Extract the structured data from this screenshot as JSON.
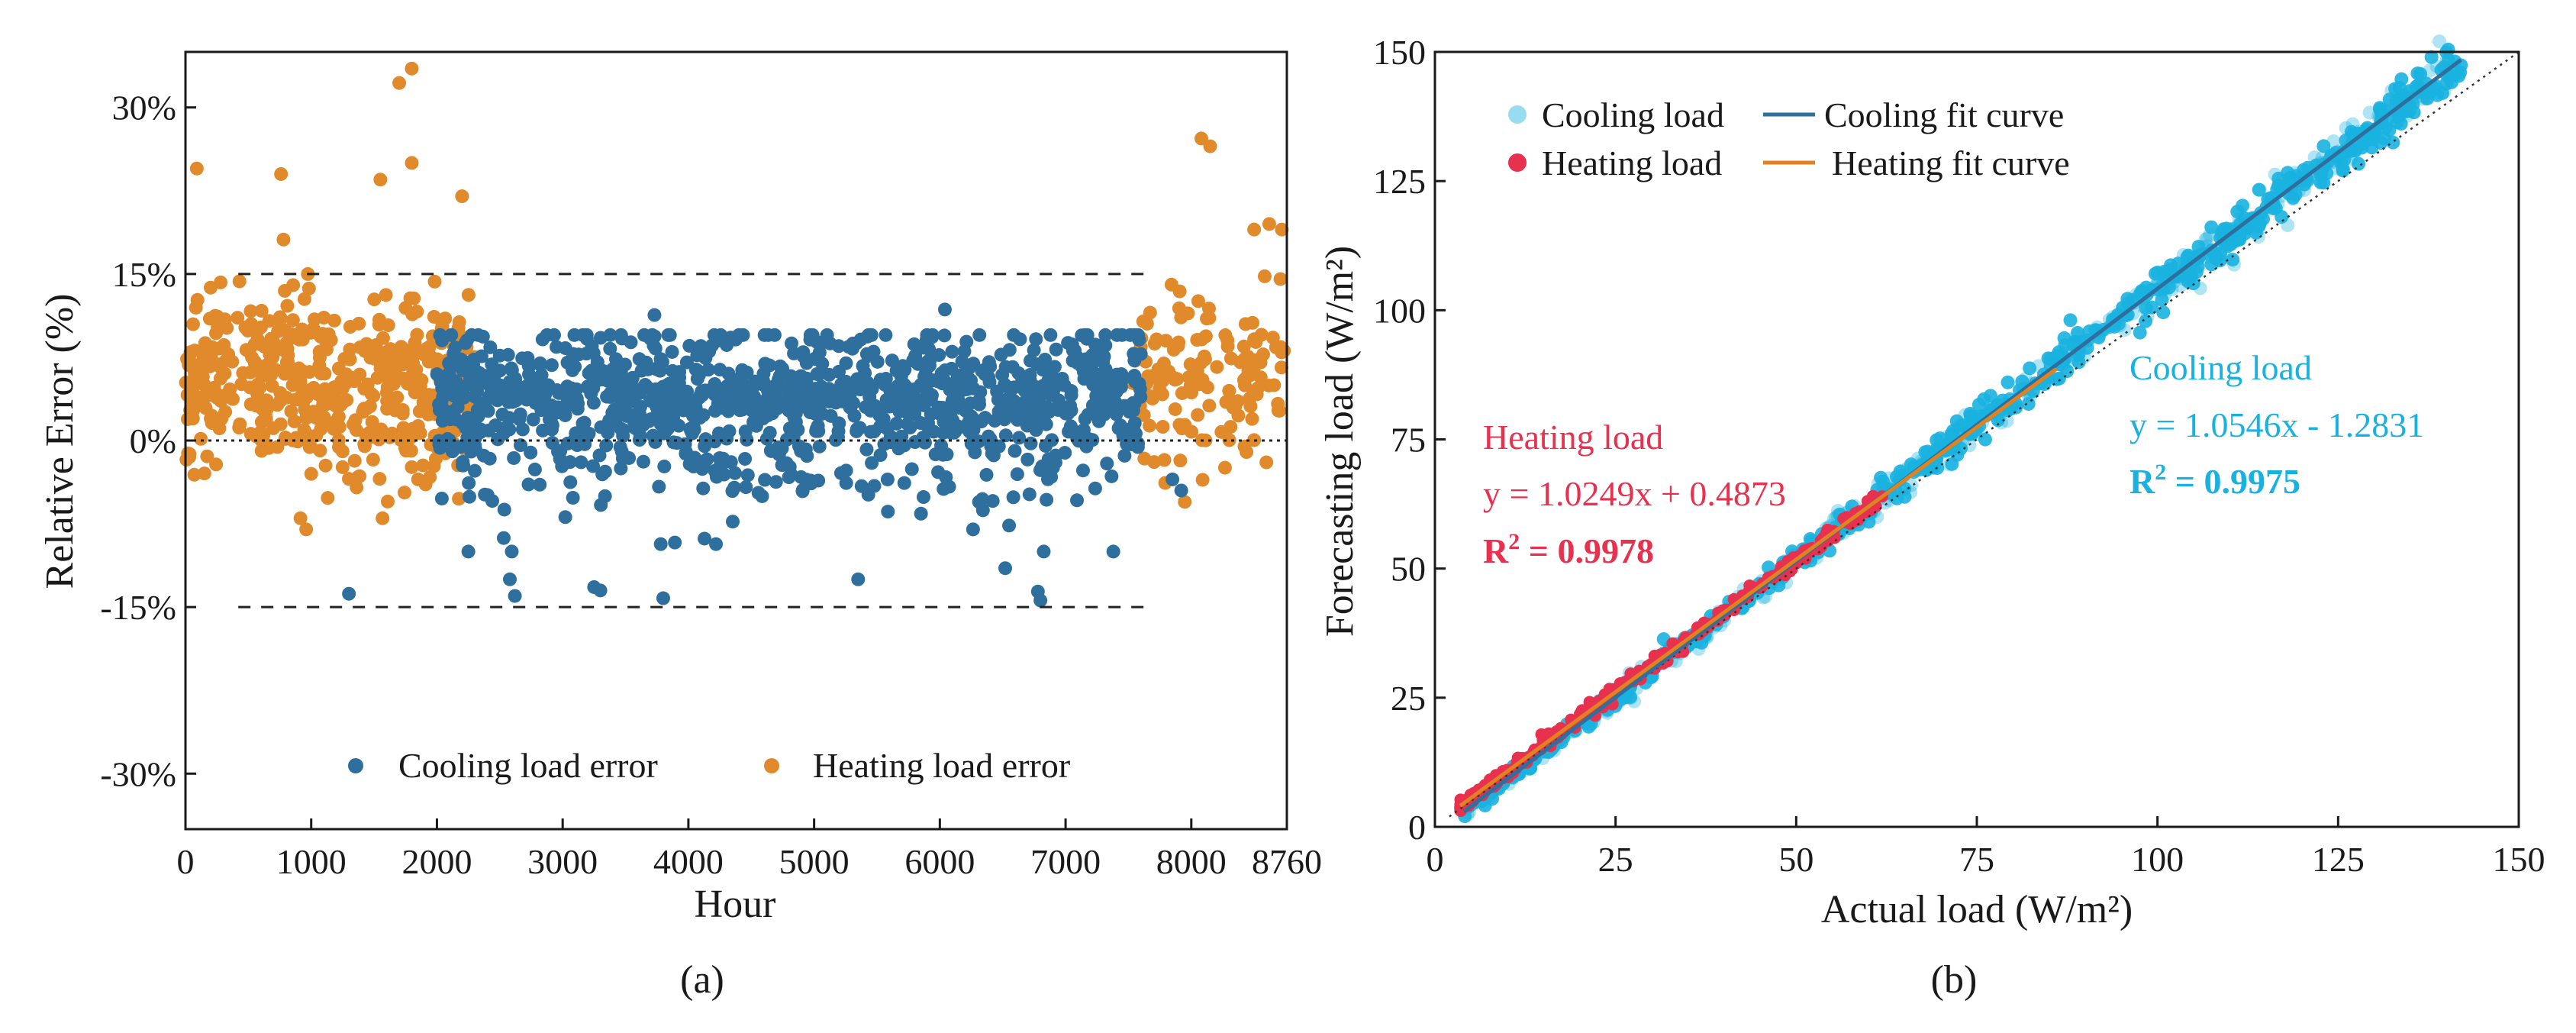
{
  "chart_data": [
    {
      "type": "scatter",
      "panel_caption": "(a)",
      "xlabel": "Hour",
      "ylabel": "Relative Error (%)",
      "xlim": [
        0,
        8760
      ],
      "ylim": [
        -35,
        35
      ],
      "x_ticks": [
        0,
        1000,
        2000,
        3000,
        4000,
        5000,
        6000,
        7000,
        8000,
        8760
      ],
      "x_tick_labels": [
        "0",
        "1000",
        "2000",
        "3000",
        "4000",
        "5000",
        "6000",
        "7000",
        "8000",
        "8760"
      ],
      "y_ticks": [
        30,
        15,
        0,
        -15,
        -30
      ],
      "y_tick_labels": [
        "30%",
        "15%",
        "0%",
        "-15%",
        "-30%"
      ],
      "reference_lines": [
        {
          "y": 15,
          "style": "dashed",
          "color": "#222222"
        },
        {
          "y": 0,
          "style": "dotted",
          "color": "#222222"
        },
        {
          "y": -15,
          "style": "dashed",
          "color": "#222222"
        }
      ],
      "legend_position": "bottom-center",
      "series": [
        {
          "name": "Cooling load error",
          "color": "#2e6f9e",
          "x_range": [
            2000,
            7600
          ],
          "y_center": 3.5,
          "y_spread": 4.5,
          "point_count": 1150,
          "outliers": [
            {
              "x": 1300,
              "y": -13.8
            },
            {
              "x": 2250,
              "y": -10
            },
            {
              "x": 2580,
              "y": -12.5
            },
            {
              "x": 2620,
              "y": -14
            },
            {
              "x": 3250,
              "y": -13.2
            },
            {
              "x": 3300,
              "y": -13.5
            },
            {
              "x": 3800,
              "y": -14.2
            },
            {
              "x": 5350,
              "y": -12.5
            },
            {
              "x": 6520,
              "y": -11.5
            },
            {
              "x": 6780,
              "y": -13.6
            },
            {
              "x": 6800,
              "y": -14.4
            },
            {
              "x": 3730,
              "y": 11.3
            },
            {
              "x": 6040,
              "y": 11.8
            },
            {
              "x": 7850,
              "y": -3.5
            },
            {
              "x": 7920,
              "y": -4.5
            }
          ]
        },
        {
          "name": "Heating load error",
          "color": "#e08a2c",
          "x_range_1": [
            0,
            2300
          ],
          "x_range_2": [
            7500,
            8760
          ],
          "y_center": 5,
          "y_spread": 5,
          "point_count": 620,
          "outliers": [
            {
              "x": 1700,
              "y": 32.2
            },
            {
              "x": 1800,
              "y": 33.5
            },
            {
              "x": 8080,
              "y": 27.2
            },
            {
              "x": 8150,
              "y": 26.5
            },
            {
              "x": 90,
              "y": 24.5
            },
            {
              "x": 760,
              "y": 24
            },
            {
              "x": 1800,
              "y": 25
            },
            {
              "x": 2200,
              "y": 22
            },
            {
              "x": 1550,
              "y": 23.5
            },
            {
              "x": 960,
              "y": -8
            },
            {
              "x": 1850,
              "y": -3.5
            },
            {
              "x": 1000,
              "y": -3
            },
            {
              "x": 8620,
              "y": 19.5
            },
            {
              "x": 8720,
              "y": 19
            },
            {
              "x": 8500,
              "y": 19
            },
            {
              "x": 30,
              "y": -1.5
            }
          ]
        }
      ]
    },
    {
      "type": "scatter",
      "panel_caption": "(b)",
      "xlabel": "Actual load (W/m²)",
      "ylabel": "Forecasting load (W/m²)",
      "xlim": [
        0,
        150
      ],
      "ylim": [
        0,
        150
      ],
      "x_ticks": [
        0,
        25,
        50,
        75,
        100,
        125,
        150
      ],
      "x_tick_labels": [
        "0",
        "25",
        "50",
        "75",
        "100",
        "125",
        "150"
      ],
      "y_ticks": [
        0,
        25,
        50,
        75,
        100,
        125,
        150
      ],
      "y_tick_labels": [
        "0",
        "25",
        "50",
        "75",
        "100",
        "125",
        "150"
      ],
      "reference_line": {
        "description": "y = x",
        "style": "dotted"
      },
      "legend_position": "top-left",
      "legend": [
        "Cooling load",
        "Cooling fit curve",
        "Heating load",
        "Heating fit curve"
      ],
      "series": [
        {
          "name": "Cooling load",
          "color": "#19b2e0",
          "x_range": [
            4,
            142
          ],
          "fit": {
            "slope": 1.0546,
            "intercept": -1.2831,
            "x_range": [
              4,
              142
            ],
            "color": "#2e6f9e"
          },
          "point_count": 900
        },
        {
          "name": "Heating load",
          "color": "#e8304f",
          "x_range": [
            3.5,
            62
          ],
          "fit": {
            "slope": 1.0249,
            "intercept": 0.4873,
            "x_range": [
              3.5,
              86
            ],
            "color": "#e0821f"
          },
          "point_count": 320
        }
      ],
      "annotations": {
        "heating": {
          "title": "Heating load",
          "equation": "y = 1.0249x + 0.4873",
          "r2_label": "R",
          "r2_sup": "2",
          "r2_value": " = 0.9978",
          "color": "#e8304f"
        },
        "cooling": {
          "title": "Cooling load",
          "equation": "y = 1.0546x - 1.2831",
          "r2_label": "R",
          "r2_sup": "2",
          "r2_value": " = 0.9975",
          "color": "#19b2e0"
        }
      }
    }
  ]
}
